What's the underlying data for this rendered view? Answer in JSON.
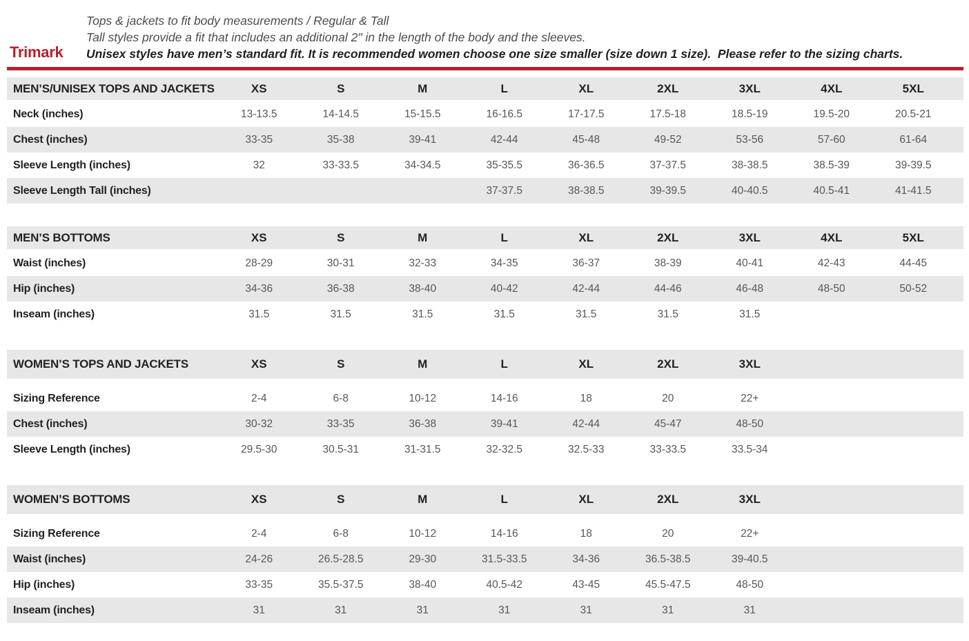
{
  "brand": {
    "name": "Trimark",
    "accent_color": "#b81f2b"
  },
  "header": {
    "line1": "Tops & jackets to fit body measurements / Regular & Tall",
    "line2": "Tall styles provide a fit that includes an additional 2\" in the length of the body and the sleeves.",
    "line3": "Unisex styles have men’s standard fit. It is recommended women choose one size smaller (size down 1 size).  Please refer to the sizing charts."
  },
  "colors": {
    "accent": "#b81f2b",
    "row_band": "#e8e7e7",
    "label_text": "#242124",
    "value_text": "#56575b"
  },
  "tables": [
    {
      "title": "MEN’S/UNISEX TOPS AND JACKETS",
      "group": "mens",
      "columns": [
        "XS",
        "S",
        "M",
        "L",
        "XL",
        "2XL",
        "3XL",
        "4XL",
        "5XL"
      ],
      "rows": [
        {
          "label": "Neck (inches)",
          "values": [
            "13-13.5",
            "14-14.5",
            "15-15.5",
            "16-16.5",
            "17-17.5",
            "17.5-18",
            "18.5-19",
            "19.5-20",
            "20.5-21"
          ]
        },
        {
          "label": "Chest (inches)",
          "values": [
            "33-35",
            "35-38",
            "39-41",
            "42-44",
            "45-48",
            "49-52",
            "53-56",
            "57-60",
            "61-64"
          ]
        },
        {
          "label": "Sleeve Length (inches)",
          "values": [
            "32",
            "33-33.5",
            "34-34.5",
            "35-35.5",
            "36-36.5",
            "37-37.5",
            "38-38.5",
            "38.5-39",
            "39-39.5"
          ]
        },
        {
          "label": "Sleeve Length Tall (inches)",
          "values": [
            "",
            "",
            "",
            "37-37.5",
            "38-38.5",
            "39-39.5",
            "40-40.5",
            "40.5-41",
            "41-41.5"
          ]
        }
      ]
    },
    {
      "title": "MEN’S BOTTOMS",
      "group": "mens",
      "columns": [
        "XS",
        "S",
        "M",
        "L",
        "XL",
        "2XL",
        "3XL",
        "4XL",
        "5XL"
      ],
      "rows": [
        {
          "label": "Waist (inches)",
          "values": [
            "28-29",
            "30-31",
            "32-33",
            "34-35",
            "36-37",
            "38-39",
            "40-41",
            "42-43",
            "44-45"
          ]
        },
        {
          "label": "Hip (inches)",
          "values": [
            "34-36",
            "36-38",
            "38-40",
            "40-42",
            "42-44",
            "44-46",
            "46-48",
            "48-50",
            "50-52"
          ]
        },
        {
          "label": "Inseam (inches)",
          "values": [
            "31.5",
            "31.5",
            "31.5",
            "31.5",
            "31.5",
            "31.5",
            "31.5",
            "",
            ""
          ]
        }
      ]
    },
    {
      "title": "WOMEN’S TOPS AND JACKETS",
      "group": "womens",
      "columns": [
        "XS",
        "S",
        "M",
        "L",
        "XL",
        "2XL",
        "3XL"
      ],
      "rows": [
        {
          "label": "Sizing Reference",
          "values": [
            "2-4",
            "6-8",
            "10-12",
            "14-16",
            "18",
            "20",
            "22+"
          ]
        },
        {
          "label": "Chest (inches)",
          "values": [
            "30-32",
            "33-35",
            "36-38",
            "39-41",
            "42-44",
            "45-47",
            "48-50"
          ]
        },
        {
          "label": "Sleeve Length (inches)",
          "values": [
            "29.5-30",
            "30.5-31",
            "31-31.5",
            "32-32.5",
            "32.5-33",
            "33-33.5",
            "33.5-34"
          ]
        }
      ]
    },
    {
      "title": "WOMEN’S BOTTOMS",
      "group": "womens",
      "columns": [
        "XS",
        "S",
        "M",
        "L",
        "XL",
        "2XL",
        "3XL"
      ],
      "rows": [
        {
          "label": "Sizing Reference",
          "values": [
            "2-4",
            "6-8",
            "10-12",
            "14-16",
            "18",
            "20",
            "22+"
          ]
        },
        {
          "label": "Waist (inches)",
          "values": [
            "24-26",
            "26.5-28.5",
            "29-30",
            "31.5-33.5",
            "34-36",
            "36.5-38.5",
            "39-40.5"
          ]
        },
        {
          "label": "Hip (inches)",
          "values": [
            "33-35",
            "35.5-37.5",
            "38-40",
            "40.5-42",
            "43-45",
            "45.5-47.5",
            "48-50"
          ]
        },
        {
          "label": "Inseam (inches)",
          "values": [
            "31",
            "31",
            "31",
            "31",
            "31",
            "31",
            "31"
          ]
        }
      ]
    }
  ]
}
